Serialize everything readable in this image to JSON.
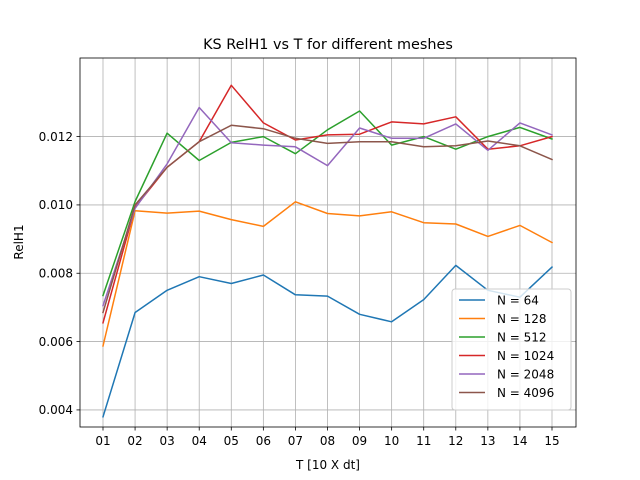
{
  "chart_data": {
    "type": "line",
    "title": "KS RelH1 vs T for different meshes",
    "xlabel": "T [10 X dt]",
    "ylabel": "RelH1",
    "categories": [
      "01",
      "02",
      "03",
      "04",
      "05",
      "06",
      "07",
      "08",
      "09",
      "10",
      "11",
      "12",
      "13",
      "14",
      "15"
    ],
    "yticks": [
      "0.004",
      "0.006",
      "0.008",
      "0.010",
      "0.012"
    ],
    "ylim": [
      0.0035,
      0.0143
    ],
    "grid": true,
    "legend_position": "lower-right",
    "series": [
      {
        "name": "N = 64",
        "color": "#1f77b4",
        "values": [
          0.0038,
          0.00685,
          0.0075,
          0.0079,
          0.0077,
          0.00795,
          0.00737,
          0.00733,
          0.0068,
          0.00658,
          0.00723,
          0.00823,
          0.0075,
          0.0073,
          0.00818
        ]
      },
      {
        "name": "N = 128",
        "color": "#ff7f0e",
        "values": [
          0.00587,
          0.00983,
          0.00976,
          0.00982,
          0.00957,
          0.00937,
          0.01009,
          0.00975,
          0.00968,
          0.0098,
          0.00948,
          0.00944,
          0.00908,
          0.0094,
          0.0089
        ]
      },
      {
        "name": "N = 512",
        "color": "#2ca02c",
        "values": [
          0.00735,
          0.0101,
          0.0121,
          0.0113,
          0.01183,
          0.012,
          0.0115,
          0.0122,
          0.01275,
          0.01175,
          0.012,
          0.01163,
          0.012,
          0.01227,
          0.01193
        ]
      },
      {
        "name": "N = 1024",
        "color": "#d62728",
        "values": [
          0.00655,
          0.00993,
          0.0111,
          0.01185,
          0.0135,
          0.0124,
          0.0119,
          0.01205,
          0.01207,
          0.01243,
          0.01237,
          0.01258,
          0.01163,
          0.01173,
          0.012
        ]
      },
      {
        "name": "N = 2048",
        "color": "#9467bd",
        "values": [
          0.00705,
          0.0099,
          0.0112,
          0.01285,
          0.01182,
          0.01175,
          0.0117,
          0.01115,
          0.01225,
          0.01195,
          0.01195,
          0.01237,
          0.0116,
          0.0124,
          0.01205
        ]
      },
      {
        "name": "N = 4096",
        "color": "#8c564b",
        "values": [
          0.00685,
          0.01,
          0.0111,
          0.01185,
          0.01233,
          0.01223,
          0.01195,
          0.0118,
          0.01185,
          0.01185,
          0.0117,
          0.01173,
          0.01187,
          0.01173,
          0.01133
        ]
      }
    ]
  }
}
